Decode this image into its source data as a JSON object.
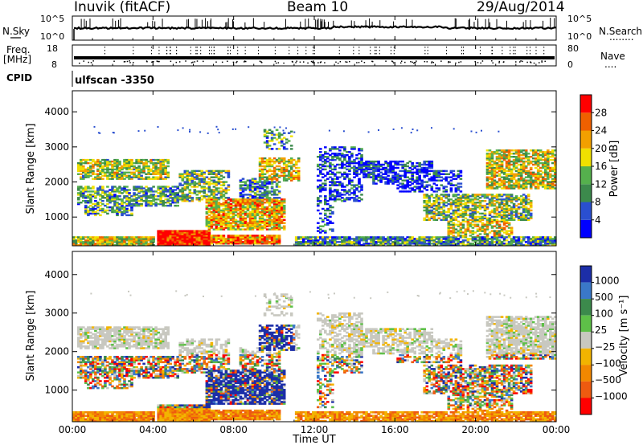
{
  "header": {
    "station": "Inuvik (fitACF)",
    "beam": "Beam 10",
    "date": "29/Aug/2014"
  },
  "side_labels": {
    "nsky": "N.Sky",
    "freq": "Freq.",
    "freq_unit": "[MHz]",
    "cpid": "CPID",
    "nsearch": "N.Search",
    "nave": "Nave",
    "nsearch_dots": "........",
    "nave_dots": "....",
    "cpid_text": "ulfscan -3350"
  },
  "colors": {
    "power": [
      "#0000ff",
      "#2a4fd0",
      "#3c8a4c",
      "#55b04d",
      "#f0e000",
      "#f2a000",
      "#ef6000",
      "#ff0000"
    ],
    "velocity": [
      "#1c2ea8",
      "#3a78c8",
      "#3c8a4c",
      "#5ec048",
      "#c8c8c0",
      "#f2b400",
      "#f28800",
      "#ee5a10",
      "#ff0000"
    ]
  },
  "chart_data": [
    {
      "type": "line",
      "panel": "noise",
      "yticks_left": [
        "10^5",
        "10^0"
      ],
      "yticks_right": [
        "10^5",
        "10^0"
      ],
      "xlim": [
        "00:00",
        "24:00"
      ]
    },
    {
      "type": "scatter",
      "panel": "frequency",
      "yticks_left": [
        18,
        8
      ],
      "yticks_right": [
        80,
        0
      ],
      "xlim": [
        "00:00",
        "24:00"
      ]
    },
    {
      "type": "heatmap",
      "panel": "power",
      "ylabel": "Slant Range [km]",
      "ylim": [
        180,
        4600
      ],
      "yticks": [
        1000,
        2000,
        3000,
        4000
      ],
      "xlim": [
        "00:00",
        "24:00"
      ],
      "colorbar_label": "Power [dB]",
      "colorbar_ticks": [
        4,
        8,
        12,
        16,
        20,
        24,
        28
      ],
      "colorbar_range": [
        0,
        32
      ]
    },
    {
      "type": "heatmap",
      "panel": "velocity",
      "ylabel": "Slant Range [km]",
      "ylim": [
        180,
        4600
      ],
      "yticks": [
        1000,
        2000,
        3000,
        4000
      ],
      "xlim": [
        "00:00",
        "24:00"
      ],
      "xticks": [
        "00:00",
        "04:00",
        "08:00",
        "12:00",
        "16:00",
        "20:00",
        "00:00"
      ],
      "xlabel": "Time UT",
      "colorbar_label": "Velocity [m s⁻¹]",
      "colorbar_ticks": [
        "1000",
        "500",
        "100",
        "25",
        "−25",
        "−100",
        "−500",
        "−1000"
      ]
    }
  ]
}
